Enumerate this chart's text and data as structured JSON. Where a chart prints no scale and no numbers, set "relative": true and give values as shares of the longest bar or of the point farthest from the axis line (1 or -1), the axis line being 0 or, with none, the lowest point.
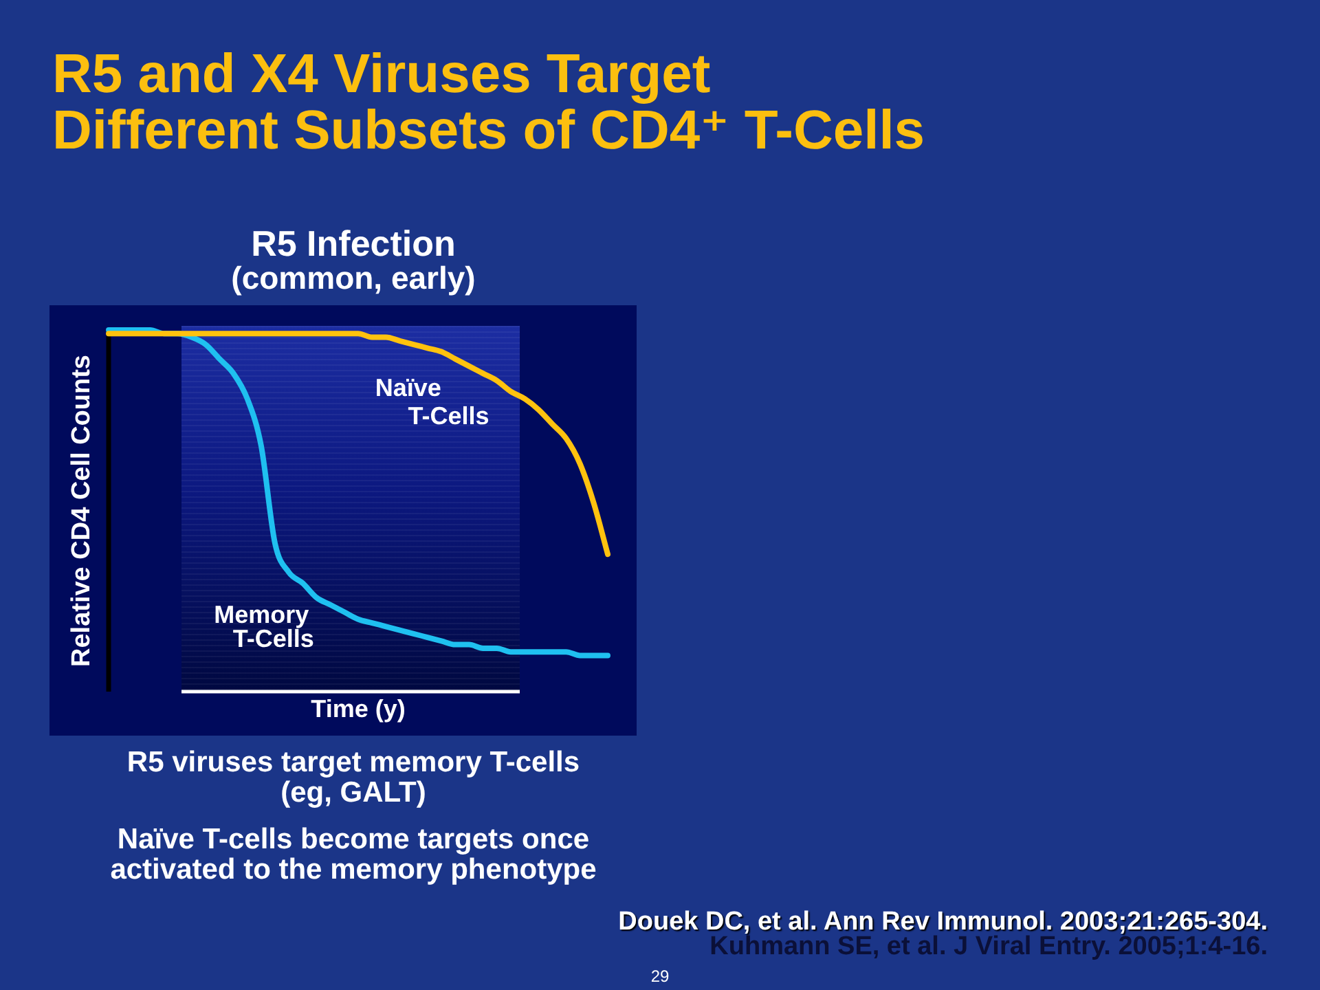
{
  "chart_data": {
    "type": "line",
    "title": "R5 and X4 Viruses Target Different Subsets of CD4⁺ T-Cells",
    "subtitle": "R5 Infection",
    "xlabel": "Time (y)",
    "ylabel": "Relative CD4 Cell Counts",
    "relative": true,
    "categories": [
      null,
      null,
      null,
      null,
      null,
      null,
      null,
      null,
      null,
      null,
      null,
      null,
      null,
      null,
      null,
      null,
      null,
      null,
      null,
      null,
      null,
      null,
      null,
      null,
      null,
      null,
      null,
      null,
      null,
      null,
      null,
      null,
      null,
      null,
      null,
      null,
      null
    ],
    "series": [
      {
        "name": "Naïve T-Cells",
        "color": "#ffc20e",
        "values": [
          0.99,
          0.99,
          0.99,
          0.99,
          0.99,
          0.99,
          0.99,
          0.99,
          0.99,
          0.99,
          0.99,
          0.99,
          0.99,
          0.99,
          0.99,
          0.99,
          0.99,
          0.99,
          0.99,
          0.98,
          0.98,
          0.97,
          0.96,
          0.95,
          0.94,
          0.92,
          0.9,
          0.88,
          0.86,
          0.83,
          0.81,
          0.78,
          0.74,
          0.7,
          0.63,
          0.52,
          0.38
        ]
      },
      {
        "name": "Memory T-Cells",
        "color": "#1fc0f0",
        "values": [
          1.0,
          1.0,
          1.0,
          1.0,
          0.99,
          0.99,
          0.98,
          0.96,
          0.92,
          0.88,
          0.81,
          0.68,
          0.41,
          0.33,
          0.3,
          0.26,
          0.24,
          0.22,
          0.2,
          0.19,
          0.18,
          0.17,
          0.16,
          0.15,
          0.14,
          0.13,
          0.13,
          0.12,
          0.12,
          0.11,
          0.11,
          0.11,
          0.11,
          0.11,
          0.1,
          0.1,
          0.1
        ]
      }
    ],
    "annotations": [
      "(common, early)",
      "R5 viruses target memory T-cells (eg, GALT)",
      "Naïve T-cells become targets once activated to the memory phenotype",
      "Douek DC, et al. Ann Rev Immunol. 2003;21:265-304.",
      "Kuhmann SE, et al. J Viral Entry. 2005;1:4-16.",
      "29"
    ]
  }
}
